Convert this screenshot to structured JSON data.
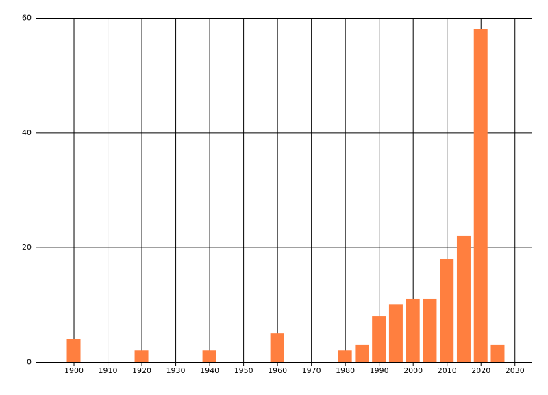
{
  "chart_data": {
    "type": "bar",
    "x": [
      1900,
      1920,
      1940,
      1960,
      1980,
      1985,
      1990,
      1995,
      2000,
      2005,
      2010,
      2015,
      2020,
      2025
    ],
    "values": [
      4,
      2,
      2,
      5,
      2,
      3,
      8,
      10,
      11,
      11,
      18,
      22,
      58,
      3
    ],
    "color": "#ff7f3f",
    "xlim": [
      1890,
      2035
    ],
    "xticks": [
      1900,
      1910,
      1920,
      1930,
      1940,
      1950,
      1960,
      1970,
      1980,
      1990,
      2000,
      2010,
      2020,
      2030
    ],
    "ylim": [
      0,
      60
    ],
    "yticks": [
      0,
      20,
      40,
      60
    ],
    "grid": true
  }
}
